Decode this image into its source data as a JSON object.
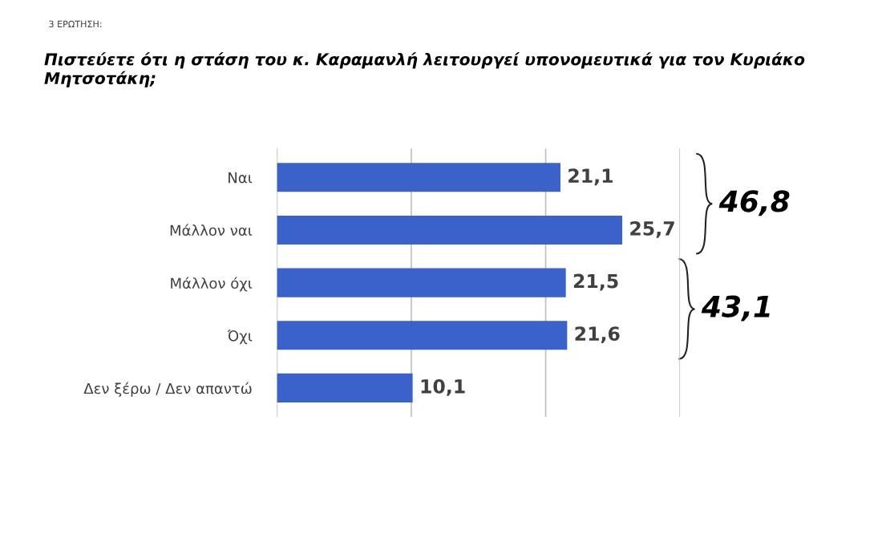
{
  "chart_data": {
    "type": "bar",
    "orientation": "horizontal",
    "title": "Πιστεύετε ότι η στάση του κ. Καραμανλή λειτουργεί υπονομευτικά για τον Κυριάκο Μητσοτάκη;",
    "subtitle": "3 ΕΡΩΤΗΣΗ:",
    "categories": [
      "Ναι",
      "Μάλλον ναι",
      "Μάλλον όχι",
      "Όχι",
      "Δεν ξέρω / Δεν απαντώ"
    ],
    "values": [
      21.1,
      25.7,
      21.5,
      21.6,
      10.1
    ],
    "value_labels": [
      "21,1",
      "25,7",
      "21,5",
      "21,6",
      "10,1"
    ],
    "color": "#3a62c9",
    "xlim": [
      0,
      30
    ],
    "xticks": [
      {
        "value": 0,
        "label": null
      },
      {
        "value": 10,
        "label": null
      },
      {
        "value": 20,
        "label": null
      },
      {
        "value": 30,
        "label": null
      }
    ],
    "grid": "x",
    "tick_labels": "y",
    "legend": false,
    "annotations": [
      "46,8",
      "43,1"
    ]
  }
}
